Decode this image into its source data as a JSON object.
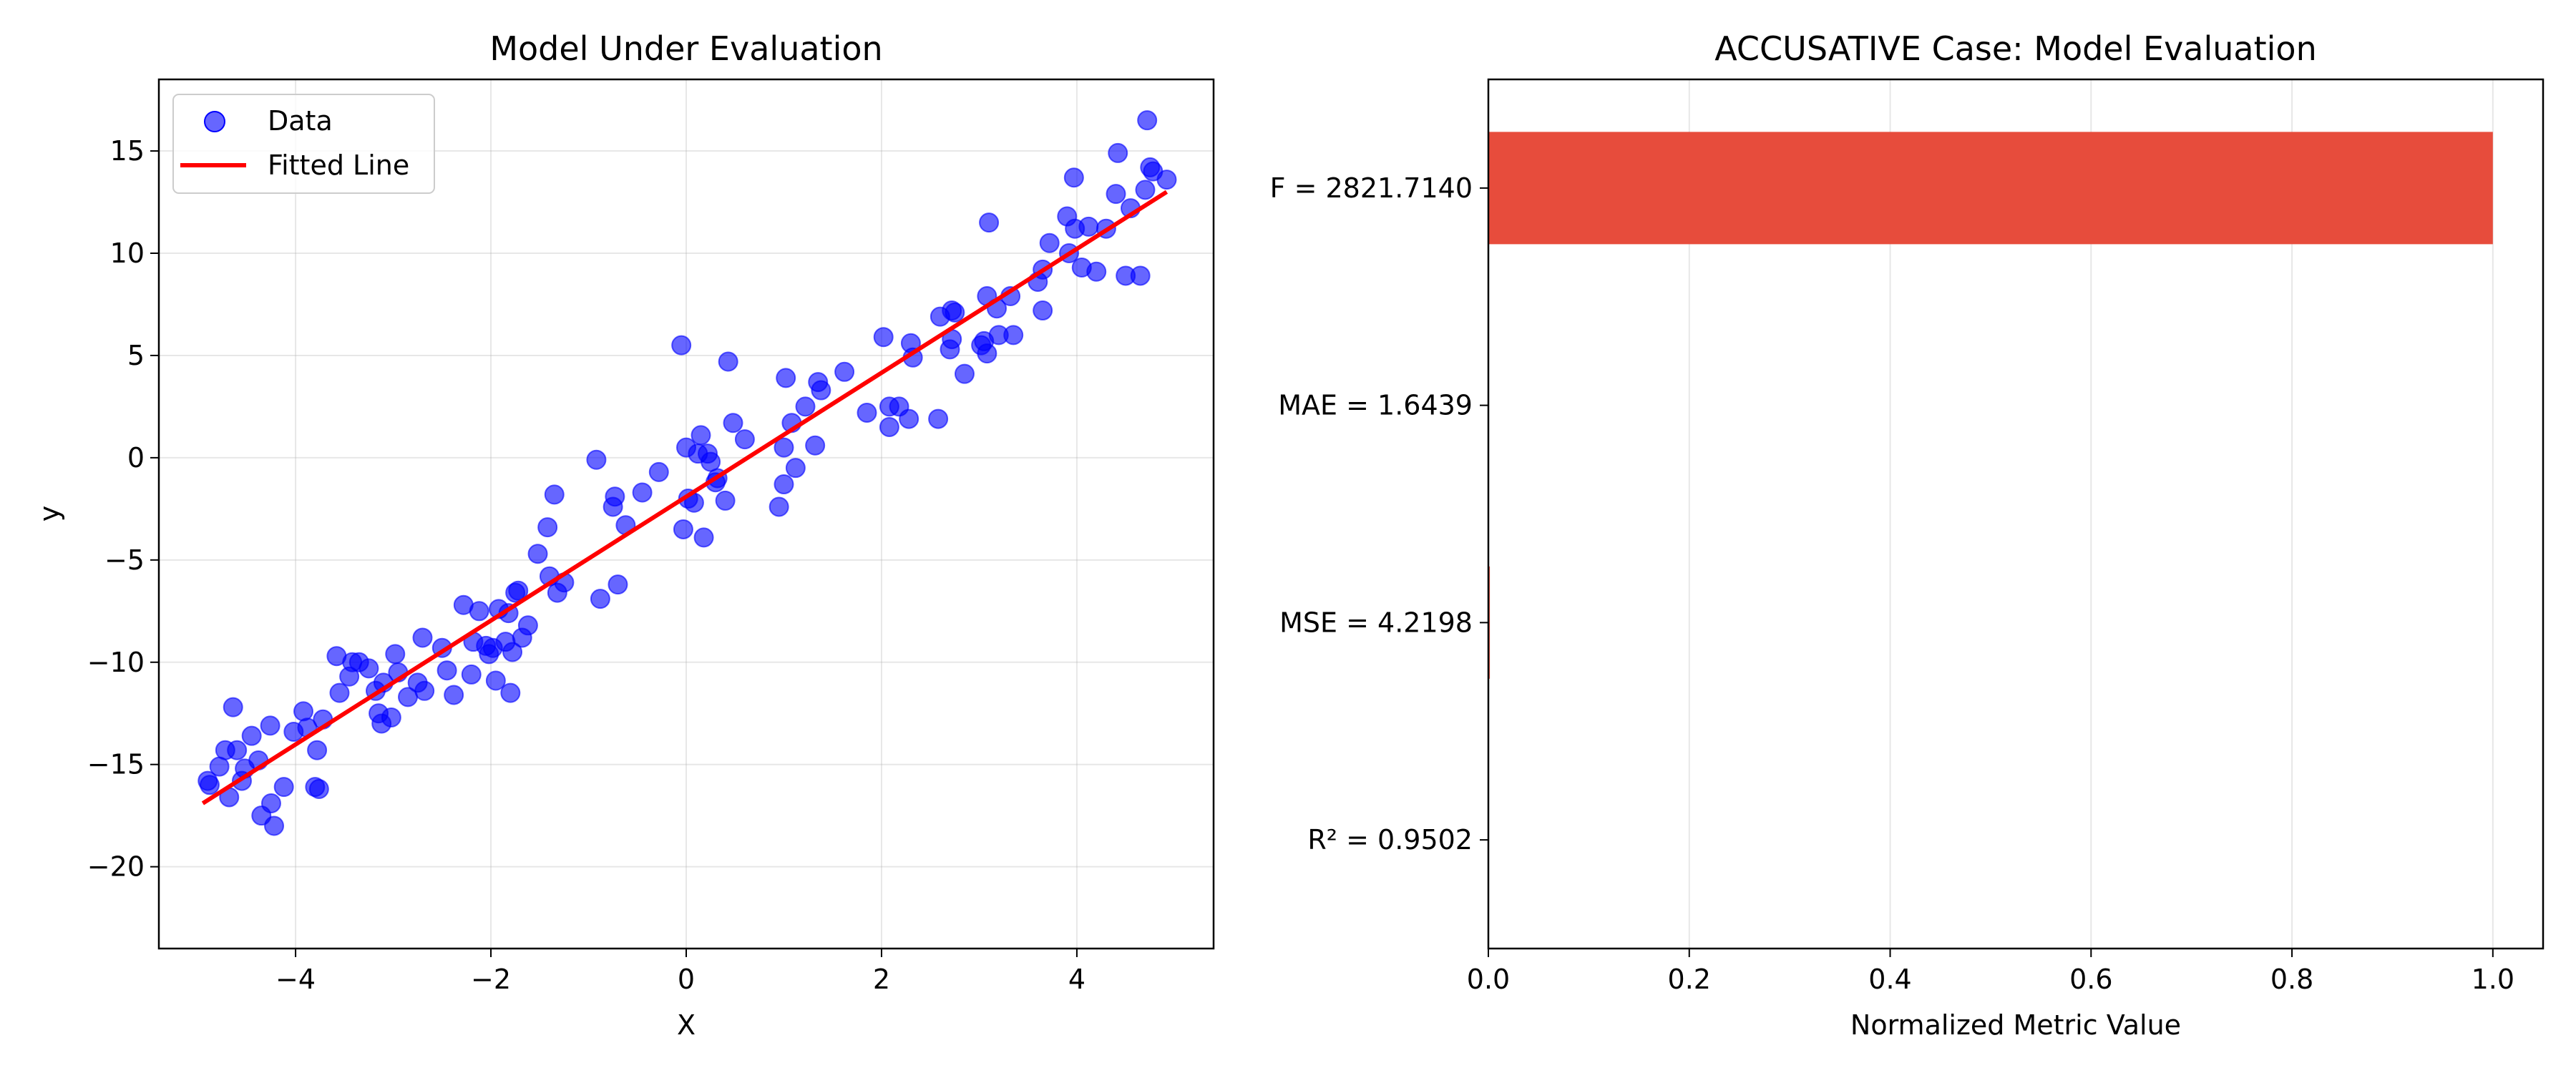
{
  "chart_data": [
    {
      "type": "scatter",
      "title": "Model Under Evaluation",
      "xlabel": "X",
      "ylabel": "y",
      "xlim": [
        -5.4,
        5.4
      ],
      "ylim": [
        -24.0,
        18.5
      ],
      "xticks": [
        -4,
        -2,
        0,
        2,
        4
      ],
      "xtick_labels": [
        "−4",
        "−2",
        "0",
        "2",
        "4"
      ],
      "yticks": [
        -20,
        -15,
        -10,
        -5,
        0,
        5,
        10,
        15
      ],
      "ytick_labels": [
        "−20",
        "−15",
        "−10",
        "−5",
        "0",
        "5",
        "10",
        "15"
      ],
      "grid": true,
      "legend_position": "upper-left",
      "series": [
        {
          "name": "Data",
          "kind": "scatter",
          "color": "#0000ff",
          "points": [
            [
              -4.9,
              -15.8
            ],
            [
              -4.88,
              -16.0
            ],
            [
              -4.78,
              -15.1
            ],
            [
              -4.72,
              -14.3
            ],
            [
              -4.68,
              -16.6
            ],
            [
              -4.6,
              -14.3
            ],
            [
              -4.64,
              -12.2
            ],
            [
              -4.55,
              -15.8
            ],
            [
              -4.52,
              -15.2
            ],
            [
              -4.45,
              -13.6
            ],
            [
              -4.38,
              -14.8
            ],
            [
              -4.35,
              -17.5
            ],
            [
              -4.25,
              -16.9
            ],
            [
              -4.22,
              -18.0
            ],
            [
              -4.26,
              -13.1
            ],
            [
              -4.12,
              -16.1
            ],
            [
              -4.02,
              -13.4
            ],
            [
              -3.92,
              -12.4
            ],
            [
              -3.88,
              -13.2
            ],
            [
              -3.8,
              -16.1
            ],
            [
              -3.76,
              -16.2
            ],
            [
              -3.78,
              -14.3
            ],
            [
              -3.72,
              -12.8
            ],
            [
              -3.58,
              -9.7
            ],
            [
              -3.55,
              -11.5
            ],
            [
              -3.45,
              -10.7
            ],
            [
              -3.42,
              -10.0
            ],
            [
              -3.35,
              -10.0
            ],
            [
              -3.25,
              -10.3
            ],
            [
              -3.18,
              -11.4
            ],
            [
              -3.15,
              -12.5
            ],
            [
              -3.12,
              -13.0
            ],
            [
              -3.1,
              -11.0
            ],
            [
              -3.02,
              -12.7
            ],
            [
              -2.98,
              -9.6
            ],
            [
              -2.95,
              -10.5
            ],
            [
              -2.85,
              -11.7
            ],
            [
              -2.75,
              -11.0
            ],
            [
              -2.68,
              -11.4
            ],
            [
              -2.7,
              -8.8
            ],
            [
              -2.5,
              -9.3
            ],
            [
              -2.45,
              -10.4
            ],
            [
              -2.38,
              -11.6
            ],
            [
              -2.28,
              -7.2
            ],
            [
              -2.2,
              -10.6
            ],
            [
              -2.18,
              -9.0
            ],
            [
              -2.12,
              -7.5
            ],
            [
              -2.05,
              -9.2
            ],
            [
              -2.02,
              -9.6
            ],
            [
              -1.98,
              -9.3
            ],
            [
              -1.92,
              -7.4
            ],
            [
              -1.95,
              -10.9
            ],
            [
              -1.82,
              -7.6
            ],
            [
              -1.85,
              -9.0
            ],
            [
              -1.78,
              -9.5
            ],
            [
              -1.8,
              -11.5
            ],
            [
              -1.75,
              -6.6
            ],
            [
              -1.72,
              -6.5
            ],
            [
              -1.68,
              -8.8
            ],
            [
              -1.62,
              -8.2
            ],
            [
              -1.52,
              -4.7
            ],
            [
              -1.42,
              -3.4
            ],
            [
              -1.4,
              -5.8
            ],
            [
              -1.35,
              -1.8
            ],
            [
              -1.32,
              -6.6
            ],
            [
              -1.25,
              -6.1
            ],
            [
              -0.92,
              -0.1
            ],
            [
              -0.88,
              -6.9
            ],
            [
              -0.75,
              -2.4
            ],
            [
              -0.73,
              -1.9
            ],
            [
              -0.7,
              -6.2
            ],
            [
              -0.62,
              -3.3
            ],
            [
              -0.45,
              -1.7
            ],
            [
              -0.28,
              -0.7
            ],
            [
              -0.05,
              5.5
            ],
            [
              -0.03,
              -3.5
            ],
            [
              0.0,
              0.5
            ],
            [
              0.02,
              -2.0
            ],
            [
              0.08,
              -2.2
            ],
            [
              0.12,
              0.2
            ],
            [
              0.15,
              1.1
            ],
            [
              0.18,
              -3.9
            ],
            [
              0.22,
              0.2
            ],
            [
              0.25,
              -0.2
            ],
            [
              0.3,
              -1.2
            ],
            [
              0.32,
              -1.0
            ],
            [
              0.4,
              -2.1
            ],
            [
              0.43,
              4.7
            ],
            [
              0.48,
              1.7
            ],
            [
              0.6,
              0.9
            ],
            [
              0.95,
              -2.4
            ],
            [
              1.0,
              0.5
            ],
            [
              1.0,
              -1.3
            ],
            [
              1.02,
              3.9
            ],
            [
              1.08,
              1.7
            ],
            [
              1.12,
              -0.5
            ],
            [
              1.22,
              2.5
            ],
            [
              1.32,
              0.6
            ],
            [
              1.35,
              3.7
            ],
            [
              1.38,
              3.3
            ],
            [
              1.62,
              4.2
            ],
            [
              1.85,
              2.2
            ],
            [
              2.02,
              5.9
            ],
            [
              2.08,
              1.5
            ],
            [
              2.08,
              2.5
            ],
            [
              2.18,
              2.5
            ],
            [
              2.28,
              1.9
            ],
            [
              2.3,
              5.6
            ],
            [
              2.32,
              4.9
            ],
            [
              2.58,
              1.9
            ],
            [
              2.6,
              6.9
            ],
            [
              2.7,
              5.3
            ],
            [
              2.72,
              7.2
            ],
            [
              2.75,
              7.1
            ],
            [
              2.72,
              5.8
            ],
            [
              2.85,
              4.1
            ],
            [
              3.02,
              5.5
            ],
            [
              3.05,
              5.7
            ],
            [
              3.08,
              5.1
            ],
            [
              3.1,
              11.5
            ],
            [
              3.08,
              7.9
            ],
            [
              3.18,
              7.3
            ],
            [
              3.2,
              6.0
            ],
            [
              3.32,
              7.9
            ],
            [
              3.35,
              6.0
            ],
            [
              3.6,
              8.6
            ],
            [
              3.65,
              9.2
            ],
            [
              3.65,
              7.2
            ],
            [
              3.72,
              10.5
            ],
            [
              3.9,
              11.8
            ],
            [
              3.92,
              10.0
            ],
            [
              3.97,
              13.7
            ],
            [
              3.98,
              11.2
            ],
            [
              4.05,
              9.3
            ],
            [
              4.12,
              11.3
            ],
            [
              4.2,
              9.1
            ],
            [
              4.3,
              11.2
            ],
            [
              4.4,
              12.9
            ],
            [
              4.42,
              14.9
            ],
            [
              4.5,
              8.9
            ],
            [
              4.55,
              12.2
            ],
            [
              4.65,
              8.9
            ],
            [
              4.7,
              13.1
            ],
            [
              4.72,
              16.5
            ],
            [
              4.75,
              14.2
            ],
            [
              4.78,
              14.0
            ],
            [
              4.92,
              13.6
            ]
          ]
        },
        {
          "name": "Fitted Line",
          "kind": "line",
          "color": "#ff0000",
          "points": [
            [
              -4.95,
              -16.9
            ],
            [
              4.92,
              13.0
            ]
          ]
        }
      ]
    },
    {
      "type": "bar",
      "orientation": "horizontal",
      "title": "ACCUSATIVE Case: Model Evaluation",
      "xlabel": "Normalized Metric Value",
      "ylabel": "",
      "xlim": [
        0.0,
        1.05
      ],
      "xticks": [
        0.0,
        0.2,
        0.4,
        0.6,
        0.8,
        1.0
      ],
      "xtick_labels": [
        "0.0",
        "0.2",
        "0.4",
        "0.6",
        "0.8",
        "1.0"
      ],
      "grid": true,
      "categories": [
        "F = 2821.7140",
        "MAE = 1.6439",
        "MSE = 4.2198",
        "R² = 0.9502"
      ],
      "values": [
        1.0,
        0.0006,
        0.0015,
        0.0003
      ],
      "bar_color": "#e74c3c"
    }
  ]
}
